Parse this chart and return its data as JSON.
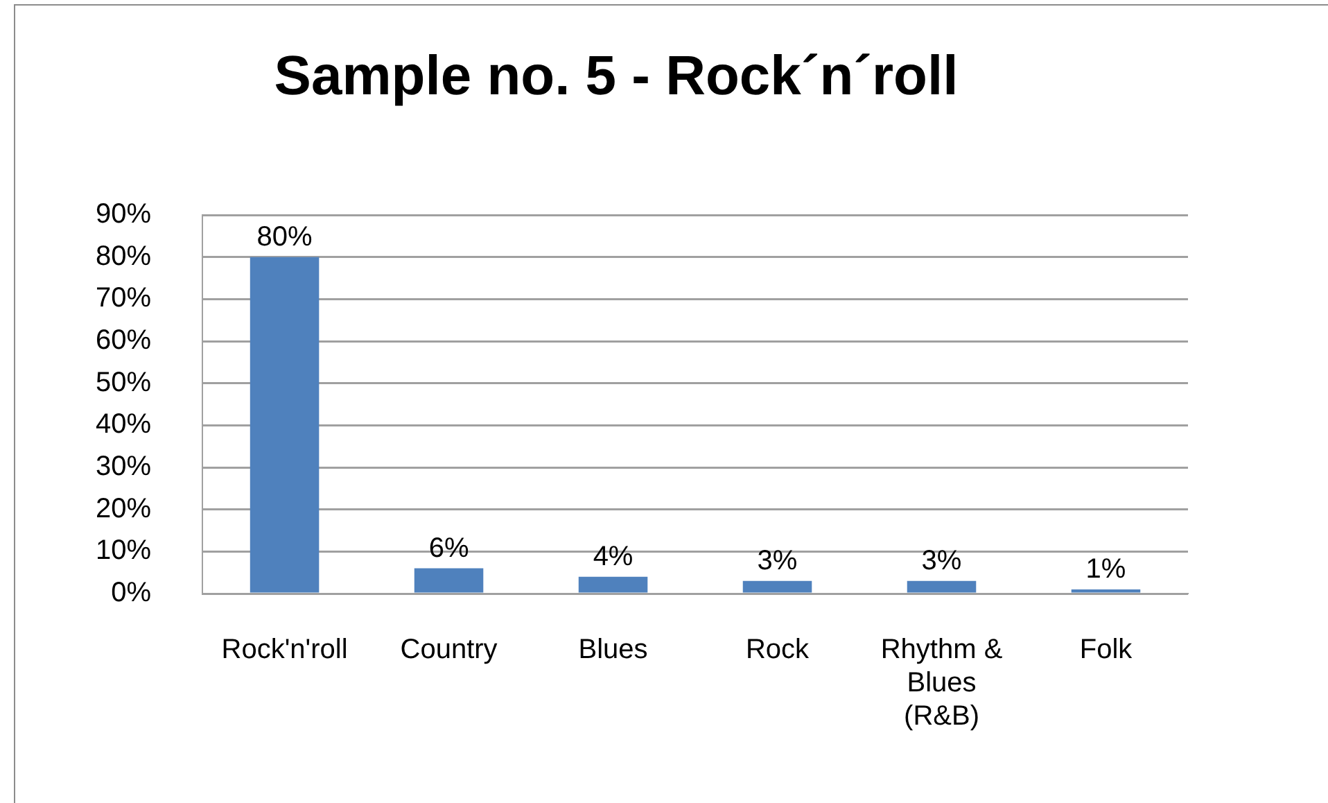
{
  "chart_data": {
    "type": "bar",
    "title": "Sample no. 5 - Rock´n´roll",
    "categories": [
      "Rock'n'roll",
      "Country",
      "Blues",
      "Rock",
      "Rhythm & Blues (R&B)",
      "Folk"
    ],
    "values": [
      80,
      6,
      4,
      3,
      3,
      1
    ],
    "value_labels": [
      "80%",
      "6%",
      "4%",
      "3%",
      "3%",
      "1%"
    ],
    "color": "#4f81bd",
    "ylim": [
      0,
      90
    ],
    "yticks": [
      {
        "value": 0,
        "label": "0%"
      },
      {
        "value": 10,
        "label": "10%"
      },
      {
        "value": 20,
        "label": "20%"
      },
      {
        "value": 30,
        "label": "30%"
      },
      {
        "value": 40,
        "label": "40%"
      },
      {
        "value": 50,
        "label": "50%"
      },
      {
        "value": 60,
        "label": "60%"
      },
      {
        "value": 70,
        "label": "70%"
      },
      {
        "value": 80,
        "label": "80%"
      },
      {
        "value": 90,
        "label": "90%"
      }
    ],
    "grid": true,
    "legend": false
  }
}
